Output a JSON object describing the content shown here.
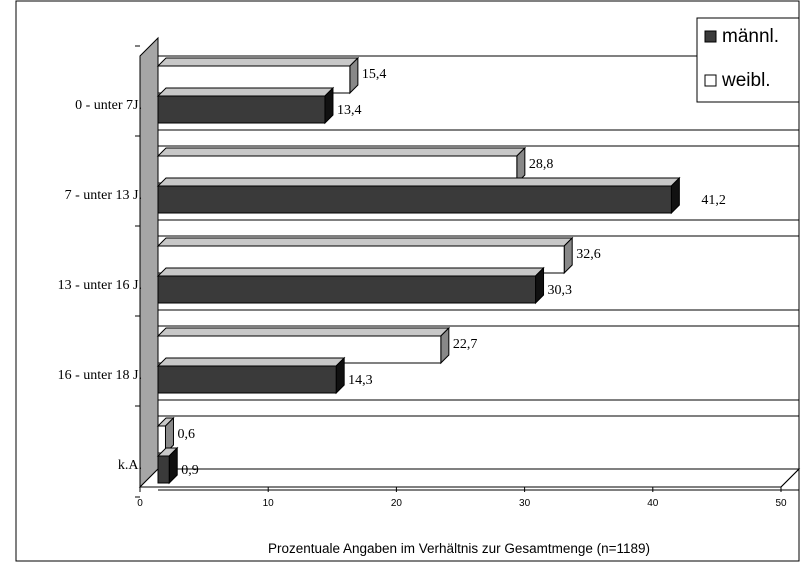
{
  "chart_data": {
    "type": "bar",
    "orientation": "horizontal",
    "three_d": true,
    "categories": [
      "0 - unter 7J.",
      "7 - unter 13 J.",
      "13 - unter 16 J.",
      "16 - unter 18 J.",
      "k.A."
    ],
    "series": [
      {
        "name": "weibl.",
        "values": [
          15.4,
          28.8,
          32.6,
          22.7,
          0.6
        ],
        "labels": [
          "15,4",
          "28,8",
          "32,6",
          "22,7",
          "0,6"
        ],
        "color": "#ffffff"
      },
      {
        "name": "männl.",
        "values": [
          13.4,
          41.2,
          30.3,
          14.3,
          0.9
        ],
        "labels": [
          "13,4",
          "41,2",
          "30,3",
          "14,3",
          "0,9"
        ],
        "color": "#3a3a3a"
      }
    ],
    "xlabel": "Prozentuale Angaben im Verhältnis zur Gesamtmenge (n=1189)",
    "xlim": [
      0,
      50
    ],
    "xticks": [
      0,
      10,
      20,
      30,
      40,
      50
    ],
    "legend_position": "top-right",
    "grid": "horizontal bands",
    "colors": {
      "male": "#3a3a3a",
      "female": "#ffffff",
      "wall": "#a6a6a6",
      "band": "#ffffff"
    }
  }
}
